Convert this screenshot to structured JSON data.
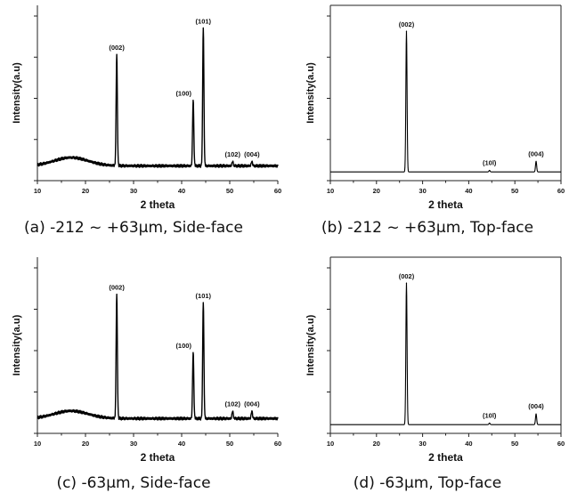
{
  "chart_data": [
    {
      "type": "line",
      "caption": "(a) -212 ~ +63μm, Side-face",
      "xlabel": "2 theta",
      "ylabel": "Intensity(a.u)",
      "xlim": [
        10,
        60
      ],
      "x_ticks": [
        10,
        20,
        30,
        40,
        50,
        60
      ],
      "grid": false,
      "axes_frame": "open",
      "baseline": 0.08,
      "hump": {
        "center": 17,
        "width": 5,
        "height": 0.055
      },
      "peaks": [
        {
          "label": "(002)",
          "x": 26.5,
          "y": 0.82
        },
        {
          "label": "(100)",
          "x": 42.4,
          "y": 0.52
        },
        {
          "label": "(101)",
          "x": 44.5,
          "y": 1.0
        },
        {
          "label": "(102)",
          "x": 50.6,
          "y": 0.11
        },
        {
          "label": "(004)",
          "x": 54.6,
          "y": 0.11
        }
      ]
    },
    {
      "type": "line",
      "caption": "(b) -212 ~ +63μm, Top-face",
      "xlabel": "2 theta",
      "ylabel": "Intensity(a.u)",
      "xlim": [
        10,
        60
      ],
      "x_ticks": [
        10,
        20,
        30,
        40,
        50,
        60
      ],
      "grid": false,
      "axes_frame": "box",
      "baseline": 0.04,
      "peaks": [
        {
          "label": "(002)",
          "x": 26.5,
          "y": 0.97
        },
        {
          "label": "(10l)",
          "x": 44.5,
          "y": 0.05
        },
        {
          "label": "(004)",
          "x": 54.6,
          "y": 0.11
        }
      ]
    },
    {
      "type": "line",
      "caption": "(c) -63μm, Side-face",
      "xlabel": "2 theta",
      "ylabel": "Intensity(a.u)",
      "xlim": [
        10,
        60
      ],
      "x_ticks": [
        10,
        20,
        30,
        40,
        50,
        60
      ],
      "grid": false,
      "axes_frame": "open",
      "baseline": 0.08,
      "hump": {
        "center": 17,
        "width": 5,
        "height": 0.05
      },
      "peaks": [
        {
          "label": "(002)",
          "x": 26.5,
          "y": 0.9
        },
        {
          "label": "(100)",
          "x": 42.4,
          "y": 0.52
        },
        {
          "label": "(101)",
          "x": 44.5,
          "y": 0.85
        },
        {
          "label": "(102)",
          "x": 50.6,
          "y": 0.13
        },
        {
          "label": "(004)",
          "x": 54.6,
          "y": 0.13
        }
      ]
    },
    {
      "type": "line",
      "caption": "(d) -63μm, Top-face",
      "xlabel": "2 theta",
      "ylabel": "Intensity(a.u)",
      "xlim": [
        10,
        60
      ],
      "x_ticks": [
        10,
        20,
        30,
        40,
        50,
        60
      ],
      "grid": false,
      "axes_frame": "box",
      "baseline": 0.04,
      "peaks": [
        {
          "label": "(002)",
          "x": 26.5,
          "y": 0.97
        },
        {
          "label": "(10l)",
          "x": 44.5,
          "y": 0.05
        },
        {
          "label": "(004)",
          "x": 54.6,
          "y": 0.11
        }
      ]
    }
  ]
}
